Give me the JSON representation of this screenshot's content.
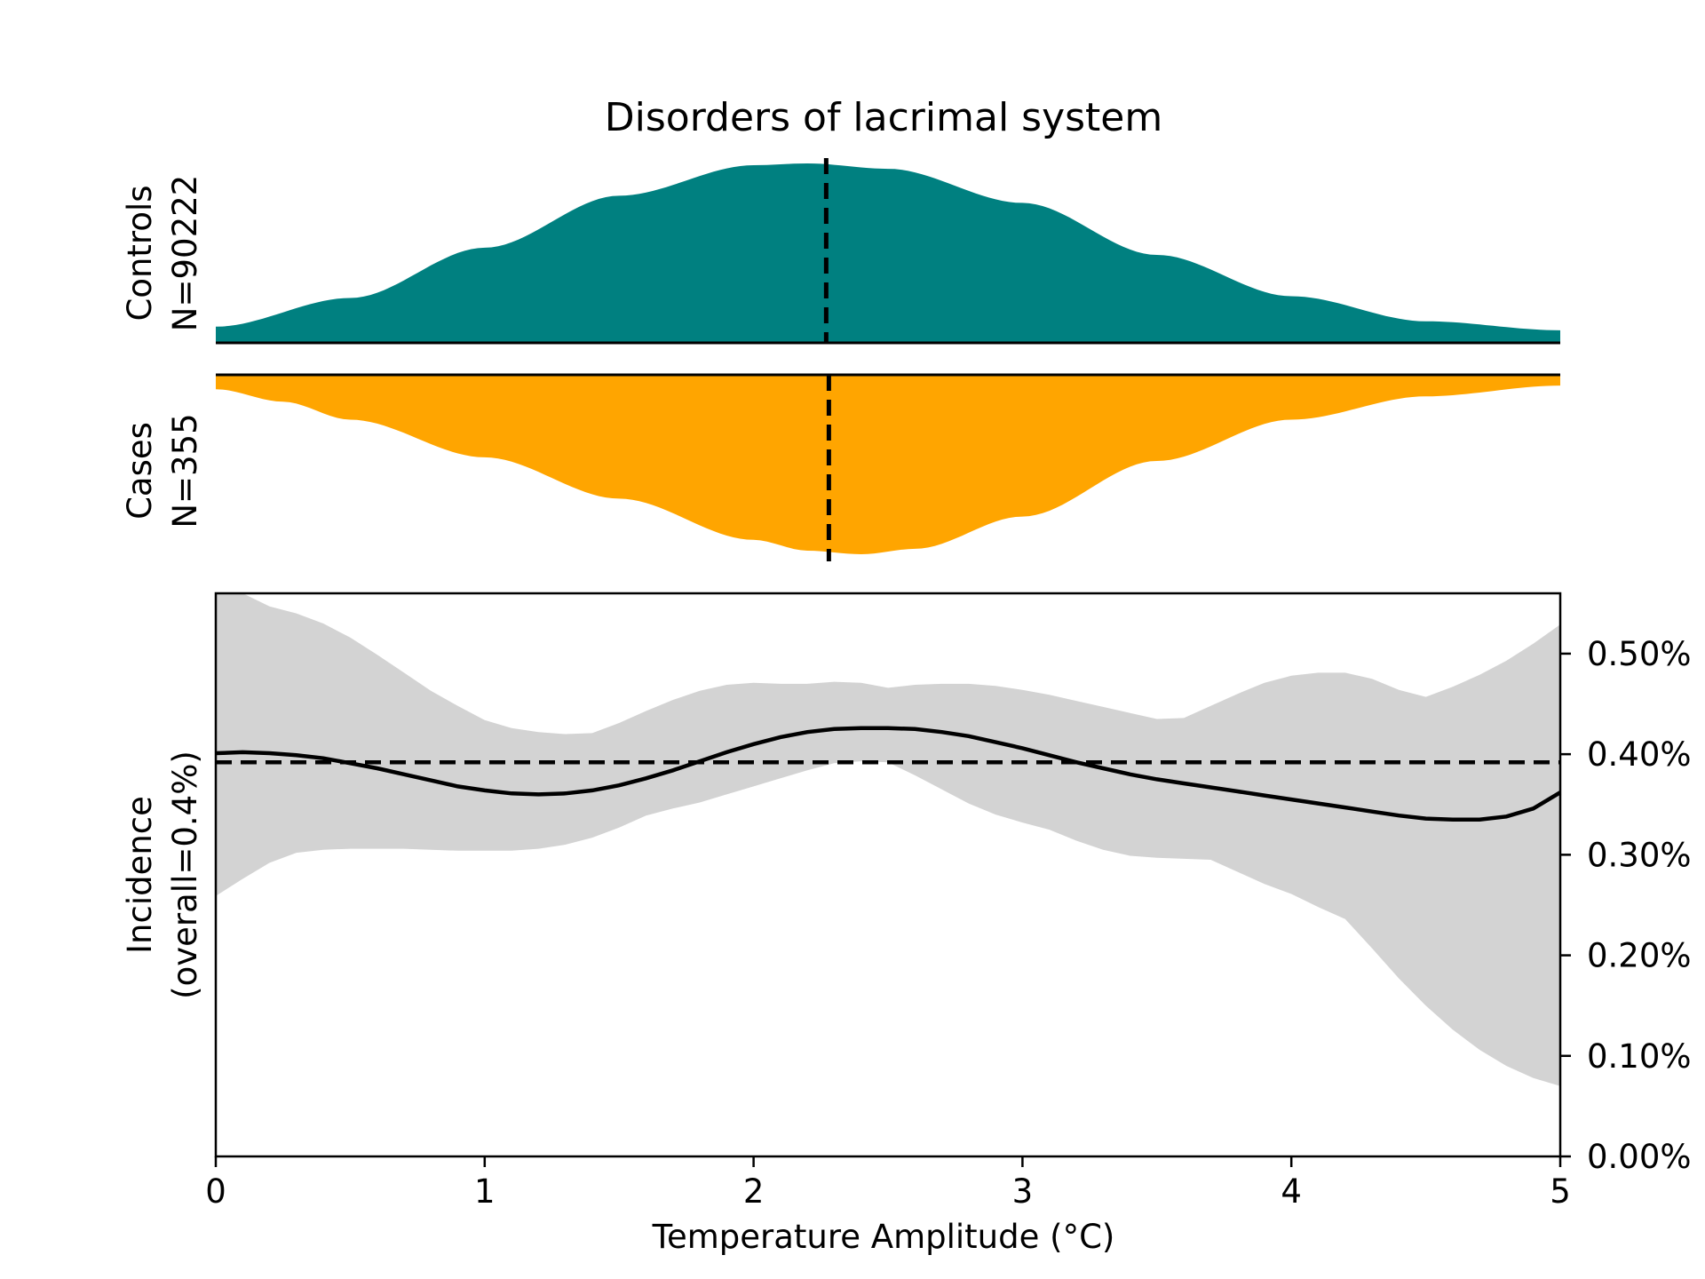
{
  "chart_data": {
    "type": "area",
    "title": "Disorders of lacrimal system",
    "colors": {
      "controls": "#008080",
      "cases": "#ffa500",
      "ci": "#d3d3d3",
      "line": "#000000"
    },
    "distributions": {
      "controls": {
        "label_line1": "Controls",
        "label_line2": "N=90222",
        "density_x": [
          0,
          0.5,
          1,
          1.5,
          2,
          2.2,
          2.5,
          3,
          3.5,
          4,
          4.5,
          5
        ],
        "density_rel": [
          0.09,
          0.25,
          0.53,
          0.82,
          0.99,
          1.0,
          0.97,
          0.78,
          0.49,
          0.26,
          0.12,
          0.07
        ],
        "median": 2.27
      },
      "cases": {
        "label_line1": "Cases",
        "label_line2": "N=355",
        "density_x": [
          0,
          0.25,
          0.5,
          1,
          1.5,
          2,
          2.2,
          2.4,
          2.6,
          3,
          3.5,
          4,
          4.5,
          5
        ],
        "density_rel": [
          0.08,
          0.15,
          0.25,
          0.46,
          0.69,
          0.92,
          0.98,
          1.0,
          0.97,
          0.79,
          0.48,
          0.25,
          0.12,
          0.06
        ],
        "median": 2.28
      }
    },
    "incidence": {
      "ylabel_line1": "Incidence",
      "ylabel_line2": "(overall=0.4%)",
      "xlabel": "Temperature Amplitude (°C)",
      "overall": 0.392,
      "x": [
        0,
        0.1,
        0.2,
        0.3,
        0.4,
        0.5,
        0.6,
        0.7,
        0.8,
        0.9,
        1.0,
        1.1,
        1.2,
        1.3,
        1.4,
        1.5,
        1.6,
        1.7,
        1.8,
        1.9,
        2.0,
        2.1,
        2.2,
        2.3,
        2.4,
        2.5,
        2.6,
        2.7,
        2.8,
        2.9,
        3.0,
        3.1,
        3.2,
        3.3,
        3.4,
        3.5,
        3.6,
        3.7,
        3.8,
        3.9,
        4.0,
        4.1,
        4.2,
        4.3,
        4.4,
        4.5,
        4.6,
        4.7,
        4.8,
        4.9,
        5.0
      ],
      "y": [
        0.401,
        0.402,
        0.401,
        0.399,
        0.396,
        0.391,
        0.386,
        0.38,
        0.374,
        0.368,
        0.364,
        0.361,
        0.36,
        0.361,
        0.364,
        0.369,
        0.376,
        0.384,
        0.393,
        0.402,
        0.41,
        0.417,
        0.422,
        0.425,
        0.426,
        0.426,
        0.425,
        0.422,
        0.418,
        0.412,
        0.406,
        0.399,
        0.392,
        0.386,
        0.38,
        0.375,
        0.371,
        0.367,
        0.363,
        0.359,
        0.355,
        0.351,
        0.347,
        0.343,
        0.339,
        0.336,
        0.335,
        0.335,
        0.338,
        0.346,
        0.362
      ],
      "ci_upper": [
        0.56,
        0.56,
        0.547,
        0.54,
        0.53,
        0.516,
        0.499,
        0.481,
        0.463,
        0.448,
        0.434,
        0.426,
        0.422,
        0.42,
        0.421,
        0.431,
        0.443,
        0.454,
        0.463,
        0.469,
        0.471,
        0.47,
        0.47,
        0.472,
        0.471,
        0.466,
        0.469,
        0.47,
        0.47,
        0.468,
        0.464,
        0.459,
        0.453,
        0.447,
        0.441,
        0.435,
        0.436,
        0.448,
        0.46,
        0.471,
        0.478,
        0.481,
        0.481,
        0.475,
        0.464,
        0.457,
        0.467,
        0.479,
        0.493,
        0.51,
        0.529
      ],
      "ci_lower": [
        0.259,
        0.276,
        0.292,
        0.302,
        0.305,
        0.306,
        0.306,
        0.306,
        0.305,
        0.304,
        0.304,
        0.304,
        0.306,
        0.31,
        0.317,
        0.327,
        0.339,
        0.346,
        0.352,
        0.36,
        0.368,
        0.376,
        0.384,
        0.391,
        0.393,
        0.392,
        0.379,
        0.365,
        0.351,
        0.34,
        0.332,
        0.325,
        0.314,
        0.305,
        0.299,
        0.297,
        0.296,
        0.295,
        0.283,
        0.271,
        0.261,
        0.248,
        0.236,
        0.207,
        0.177,
        0.15,
        0.126,
        0.106,
        0.09,
        0.078,
        0.07
      ],
      "xlim": [
        0,
        5
      ],
      "ylim": [
        0,
        0.56
      ],
      "xticks": [
        0,
        1,
        2,
        3,
        4,
        5
      ],
      "xtick_labels": [
        "0",
        "1",
        "2",
        "3",
        "4",
        "5"
      ],
      "yticks": [
        0,
        0.1,
        0.2,
        0.3,
        0.4,
        0.5
      ],
      "ytick_labels": [
        "0.00%",
        "0.10%",
        "0.20%",
        "0.30%",
        "0.40%",
        "0.50%"
      ],
      "y_axis_side": "right"
    }
  }
}
